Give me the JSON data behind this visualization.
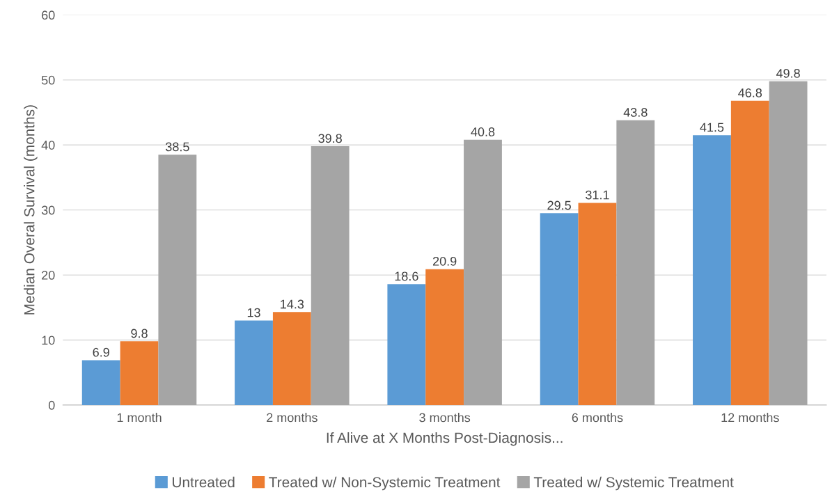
{
  "chart_data": {
    "type": "bar",
    "xlabel": "If Alive at X Months Post-Diagnosis...",
    "ylabel": "Median Overal Survival (months)",
    "categories": [
      "1 month",
      "2 months",
      "3 months",
      "6 months",
      "12 months"
    ],
    "series": [
      {
        "name": "Untreated",
        "color": "#5b9bd5",
        "values": [
          6.9,
          13,
          18.6,
          29.5,
          41.5
        ]
      },
      {
        "name": "Treated w/ Non-Systemic Treatment",
        "color": "#ed7d31",
        "values": [
          9.8,
          14.3,
          20.9,
          31.1,
          46.8
        ]
      },
      {
        "name": "Treated w/ Systemic Treatment",
        "color": "#a5a5a5",
        "values": [
          38.5,
          39.8,
          40.8,
          43.8,
          49.8
        ]
      }
    ],
    "ylim": [
      0,
      60
    ],
    "yticks": [
      0,
      10,
      20,
      30,
      40,
      50,
      60
    ],
    "grid": "y",
    "legend": "bottom",
    "data_labels": true
  }
}
